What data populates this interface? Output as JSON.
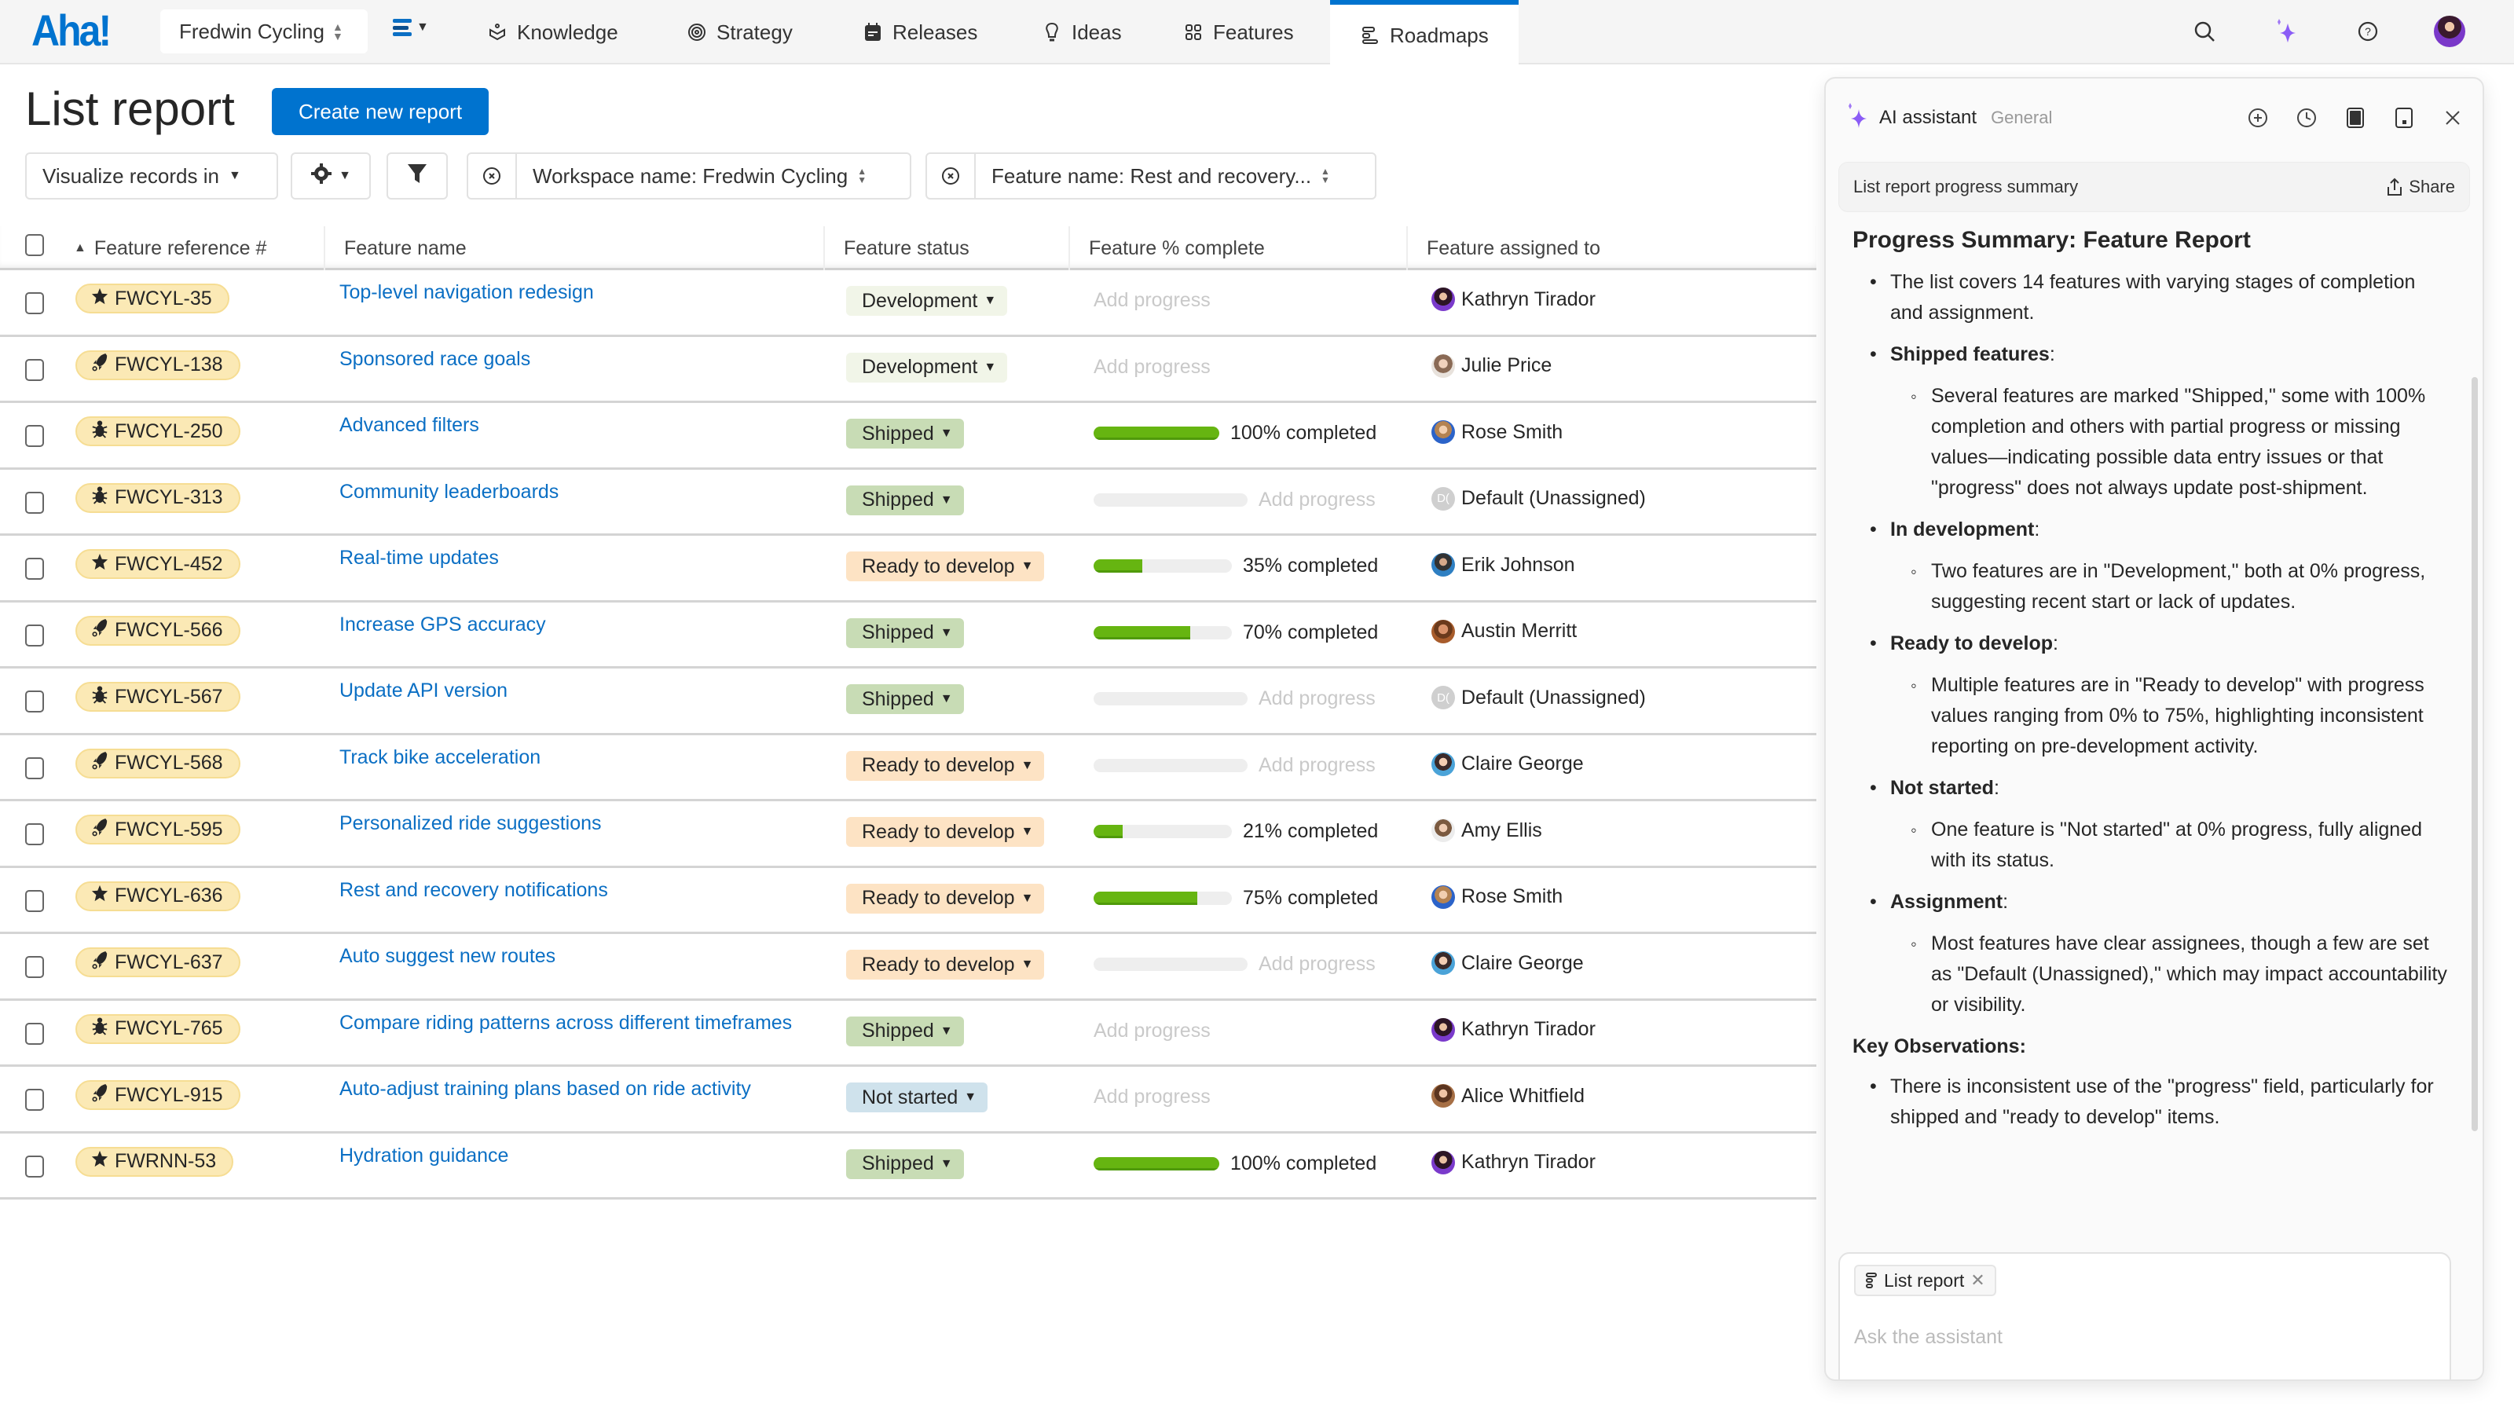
{
  "app": {
    "logo": "Aha!",
    "workspace": "Fredwin Cycling",
    "nav": [
      {
        "label": "Knowledge",
        "icon": "knowledge-icon"
      },
      {
        "label": "Strategy",
        "icon": "target-icon"
      },
      {
        "label": "Releases",
        "icon": "calendar-icon"
      },
      {
        "label": "Ideas",
        "icon": "lightbulb-icon"
      },
      {
        "label": "Features",
        "icon": "grid-icon"
      },
      {
        "label": "Roadmaps",
        "icon": "roadmap-icon",
        "active": true
      }
    ],
    "top_icons": [
      "search-icon",
      "ai-sparkle-icon",
      "help-icon",
      "user-avatar"
    ]
  },
  "page": {
    "title": "List report",
    "create_button": "Create new report"
  },
  "filters": {
    "visualize": "Visualize records in",
    "workspace_filter": "Workspace name: Fredwin Cycling",
    "feature_filter": "Feature name: Rest and recovery..."
  },
  "table": {
    "columns": [
      "Feature reference #",
      "Feature name",
      "Feature status",
      "Feature % complete",
      "Feature assigned to"
    ],
    "add_progress_label": "Add progress",
    "rows": [
      {
        "ref": "FWCYL-35",
        "type": "star",
        "name": "Top-level navigation redesign",
        "status": "Development",
        "progress": null,
        "bar": false,
        "assignee": "Kathryn Tirador",
        "avatar": "kathryn"
      },
      {
        "ref": "FWCYL-138",
        "type": "rocket",
        "name": "Sponsored race goals",
        "status": "Development",
        "progress": null,
        "bar": false,
        "assignee": "Julie Price",
        "avatar": "julie"
      },
      {
        "ref": "FWCYL-250",
        "type": "bug",
        "name": "Advanced filters",
        "status": "Shipped",
        "progress": 100,
        "bar": true,
        "progress_label": "100% completed",
        "assignee": "Rose Smith",
        "avatar": "rose"
      },
      {
        "ref": "FWCYL-313",
        "type": "bug",
        "name": "Community leaderboards",
        "status": "Shipped",
        "progress": null,
        "bar": true,
        "assignee": "Default (Unassigned)",
        "avatar": "default"
      },
      {
        "ref": "FWCYL-452",
        "type": "star",
        "name": "Real-time updates",
        "status": "Ready to develop",
        "progress": 35,
        "bar": true,
        "progress_label": "35% completed",
        "assignee": "Erik Johnson",
        "avatar": "erik"
      },
      {
        "ref": "FWCYL-566",
        "type": "rocket",
        "name": "Increase GPS accuracy",
        "status": "Shipped",
        "progress": 70,
        "bar": true,
        "progress_label": "70% completed",
        "assignee": "Austin Merritt",
        "avatar": "austin"
      },
      {
        "ref": "FWCYL-567",
        "type": "bug",
        "name": "Update API version",
        "status": "Shipped",
        "progress": null,
        "bar": true,
        "assignee": "Default (Unassigned)",
        "avatar": "default"
      },
      {
        "ref": "FWCYL-568",
        "type": "rocket",
        "name": "Track bike acceleration",
        "status": "Ready to develop",
        "progress": null,
        "bar": true,
        "assignee": "Claire George",
        "avatar": "claire"
      },
      {
        "ref": "FWCYL-595",
        "type": "rocket",
        "name": "Personalized ride suggestions",
        "status": "Ready to develop",
        "progress": 21,
        "bar": true,
        "progress_label": "21% completed",
        "assignee": "Amy Ellis",
        "avatar": "amy"
      },
      {
        "ref": "FWCYL-636",
        "type": "star",
        "name": "Rest and recovery notifications",
        "status": "Ready to develop",
        "progress": 75,
        "bar": true,
        "progress_label": "75% completed",
        "assignee": "Rose Smith",
        "avatar": "rose"
      },
      {
        "ref": "FWCYL-637",
        "type": "rocket",
        "name": "Auto suggest new routes",
        "status": "Ready to develop",
        "progress": null,
        "bar": true,
        "assignee": "Claire George",
        "avatar": "claire"
      },
      {
        "ref": "FWCYL-765",
        "type": "bug",
        "name": "Compare riding patterns across different timeframes",
        "status": "Shipped",
        "progress": null,
        "bar": false,
        "assignee": "Kathryn Tirador",
        "avatar": "kathryn"
      },
      {
        "ref": "FWCYL-915",
        "type": "rocket",
        "name": "Auto-adjust training plans based on ride activity",
        "status": "Not started",
        "progress": null,
        "bar": false,
        "assignee": "Alice Whitfield",
        "avatar": "alice"
      },
      {
        "ref": "FWRNN-53",
        "type": "star",
        "name": "Hydration guidance",
        "status": "Shipped",
        "progress": 100,
        "bar": true,
        "progress_label": "100% completed",
        "assignee": "Kathryn Tirador",
        "avatar": "kathryn"
      }
    ]
  },
  "status_colors": {
    "Development": "#f1f5e8",
    "Shipped": "#c8dcb5",
    "Ready to develop": "#fde3c4",
    "Not started": "#cfe2ec"
  },
  "colors": {
    "brand": "#0073cf",
    "link": "#0b6fc4",
    "progress": "#66b511",
    "ref_badge": "#fbe9b5",
    "ai_accent": "#8b5cf6"
  },
  "ai": {
    "title": "AI assistant",
    "context": "General",
    "conversation_title": "List report progress summary",
    "share_label": "Share",
    "heading": "Progress Summary: Feature Report",
    "intro": "The list covers 14 features with varying stages of completion and assignment.",
    "sections": [
      {
        "label": "Shipped features",
        "text": "Several features are marked \"Shipped,\" some with 100% completion and others with partial progress or missing values—indicating possible data entry issues or that \"progress\" does not always update post-shipment."
      },
      {
        "label": "In development",
        "text": "Two features are in \"Development,\" both at 0% progress, suggesting recent start or lack of updates."
      },
      {
        "label": "Ready to develop",
        "text": "Multiple features are in \"Ready to develop\" with progress values ranging from 0% to 75%, highlighting inconsistent reporting on pre-development activity."
      },
      {
        "label": "Not started",
        "text": "One feature is \"Not started\" at 0% progress, fully aligned with its status."
      },
      {
        "label": "Assignment",
        "text": "Most features have clear assignees, though a few are set as \"Default (Unassigned),\" which may impact accountability or visibility."
      }
    ],
    "key_observations_heading": "Key Observations:",
    "key_observations": [
      "There is inconsistent use of the \"progress\" field, particularly for shipped and \"ready to develop\" items."
    ],
    "context_chip": "List report",
    "input_placeholder": "Ask the assistant"
  }
}
